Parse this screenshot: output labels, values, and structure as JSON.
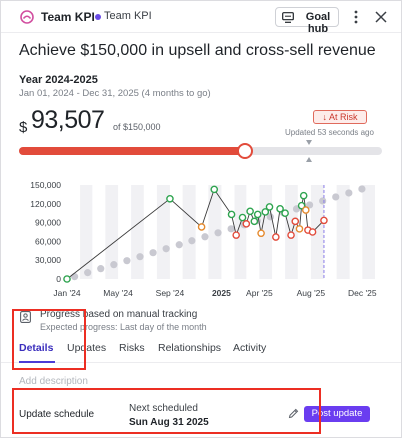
{
  "header": {
    "team_name": "Team KPI",
    "breadcrumb": "Team KPI",
    "goal_hub_label": "Goal hub",
    "icons": {
      "team": "team-logo-icon",
      "goal_hub": "monitor-icon",
      "more": "more-vertical-icon",
      "close": "close-icon"
    }
  },
  "goal": {
    "title": "Achieve $150,000 in upsell and cross-sell revenue",
    "period_label": "Year 2024-2025",
    "date_range": "Jan 01, 2024 - Dec 31, 2025 (4 months to go)",
    "currency": "$",
    "current_value": "93,507",
    "target_text": "of $150,000",
    "status": "↓ At Risk",
    "updated": "Updated 53 seconds ago",
    "progress_fraction": 0.623,
    "expected_fraction": 0.8
  },
  "chart_data": {
    "type": "line",
    "y_ticks": [
      "150,000",
      "120,000",
      "90,000",
      "60,000",
      "30,000",
      "0"
    ],
    "ylim": [
      0,
      150000
    ],
    "x_ticks": [
      "Jan '24",
      "May '24",
      "Sep '24",
      "2025",
      "Apr '25",
      "Aug '25",
      "Dec '25"
    ],
    "bold_tick": "2025",
    "series": [
      {
        "values": [
          {
            "x": "2024-01-01",
            "y": 0,
            "status": "on-track"
          },
          {
            "x": "2024-09-01",
            "y": 128000,
            "status": "on-track"
          },
          {
            "x": "2024-11-15",
            "y": 83000,
            "status": "behind"
          },
          {
            "x": "2024-12-15",
            "y": 143000,
            "status": "on-track"
          },
          {
            "x": "2025-01-25",
            "y": 103000,
            "status": "on-track"
          },
          {
            "x": "2025-02-05",
            "y": 70000,
            "status": "at-risk"
          },
          {
            "x": "2025-02-20",
            "y": 98000,
            "status": "on-track"
          },
          {
            "x": "2025-03-01",
            "y": 88000,
            "status": "at-risk"
          },
          {
            "x": "2025-03-10",
            "y": 108000,
            "status": "on-track"
          },
          {
            "x": "2025-03-20",
            "y": 92000,
            "status": "on-track"
          },
          {
            "x": "2025-03-28",
            "y": 103000,
            "status": "on-track"
          },
          {
            "x": "2025-04-05",
            "y": 73000,
            "status": "behind"
          },
          {
            "x": "2025-04-15",
            "y": 107000,
            "status": "on-track"
          },
          {
            "x": "2025-04-25",
            "y": 115000,
            "status": "on-track"
          },
          {
            "x": "2025-05-10",
            "y": 67000,
            "status": "at-risk"
          },
          {
            "x": "2025-05-20",
            "y": 112000,
            "status": "on-track"
          },
          {
            "x": "2025-06-01",
            "y": 105000,
            "status": "on-track"
          },
          {
            "x": "2025-06-15",
            "y": 70000,
            "status": "at-risk"
          },
          {
            "x": "2025-06-25",
            "y": 92000,
            "status": "at-risk"
          },
          {
            "x": "2025-07-05",
            "y": 80000,
            "status": "behind"
          },
          {
            "x": "2025-07-10",
            "y": 117000,
            "status": "on-track"
          },
          {
            "x": "2025-07-15",
            "y": 133000,
            "status": "on-track"
          },
          {
            "x": "2025-07-20",
            "y": 110000,
            "status": "behind"
          },
          {
            "x": "2025-07-25",
            "y": 78000,
            "status": "at-risk"
          },
          {
            "x": "2025-08-05",
            "y": 75000,
            "status": "at-risk"
          },
          {
            "x": "2025-09-01",
            "y": 93507,
            "status": "at-risk"
          }
        ]
      }
    ],
    "expected_line": [
      {
        "x": "2024-01-01",
        "y": 0
      },
      {
        "x": "2025-12-31",
        "y": 150000
      }
    ],
    "today": "2025-09-01",
    "colors": {
      "on-track": "#2ea44f",
      "behind": "#e58a2e",
      "at-risk": "#e24b3b",
      "expected": "#c9c9d1",
      "today_line": "#8a7ce8"
    }
  },
  "tracking": {
    "text": "Progress based on manual tracking",
    "expected": "Expected progress: Last day of the month",
    "icon": "user-badge-icon"
  },
  "tabs": [
    {
      "label": "Details",
      "active": true
    },
    {
      "label": "Updates",
      "active": false
    },
    {
      "label": "Risks",
      "active": false
    },
    {
      "label": "Relationships",
      "active": false
    },
    {
      "label": "Activity",
      "active": false
    }
  ],
  "details": {
    "description_placeholder": "Add description",
    "schedule_label": "Update schedule",
    "next_label": "Next scheduled",
    "next_date": "Sun Aug 31 2025",
    "post_button": "Post update",
    "edit_icon": "pencil-icon"
  },
  "annotation_color": "#ec2e23"
}
